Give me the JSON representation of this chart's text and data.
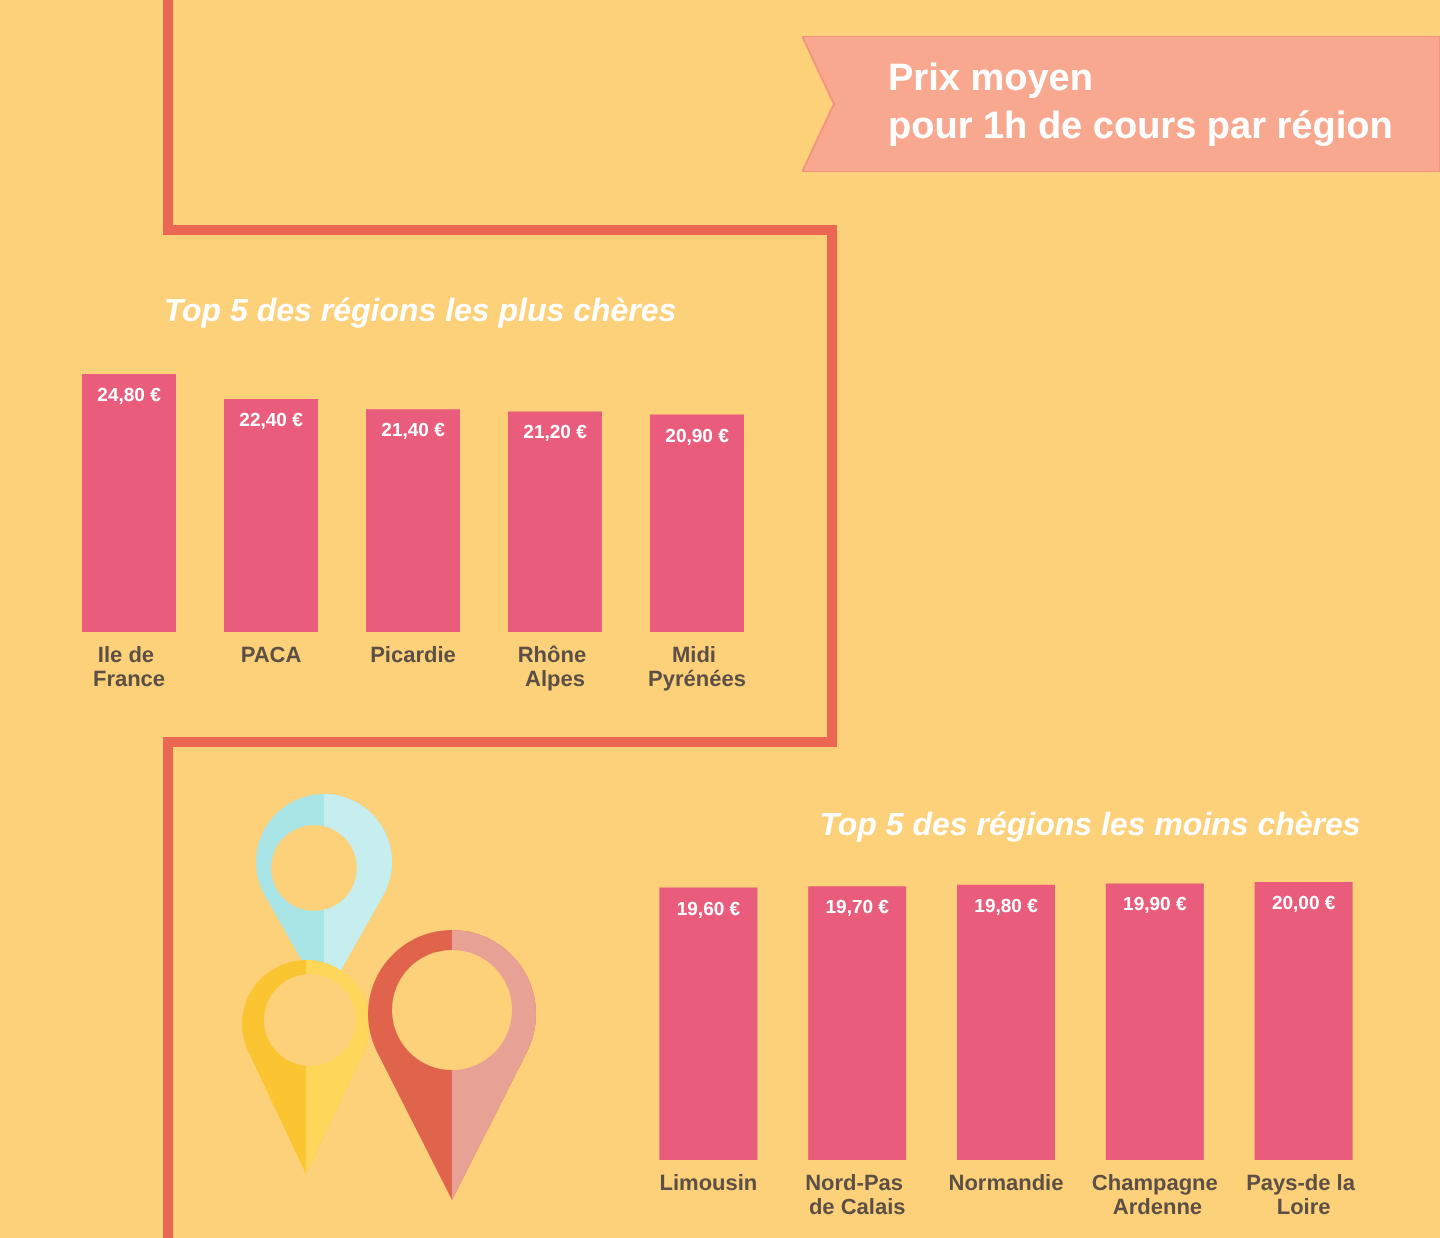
{
  "chart_data": [
    {
      "type": "other",
      "title": "Prix moyen",
      "subtitle": "pour 1h de cours par région"
    },
    {
      "type": "bar",
      "title": "Top 5 des régions les plus chères",
      "categories": [
        "Ile de France",
        "PACA",
        "Picardie",
        "Rhône Alpes",
        "Midi Pyrénées"
      ],
      "values": [
        24.8,
        22.4,
        21.4,
        21.2,
        20.9
      ],
      "value_labels": [
        "24,80 €",
        "22,40 €",
        "21,40 €",
        "21,20 €",
        "20,90 €"
      ],
      "color": "#e95c7c"
    },
    {
      "type": "bar",
      "title": "Top 5 des régions les moins chères",
      "categories": [
        "Limousin",
        "Nord-Pas de Calais",
        "Normandie",
        "Champagne Ardenne",
        "Pays-de la Loire"
      ],
      "values": [
        19.6,
        19.7,
        19.8,
        19.9,
        20.0
      ],
      "value_labels": [
        "19,60 €",
        "19,70 €",
        "19,80 €",
        "19,90 €",
        "20,00 €"
      ],
      "color": "#e95c7c"
    }
  ]
}
